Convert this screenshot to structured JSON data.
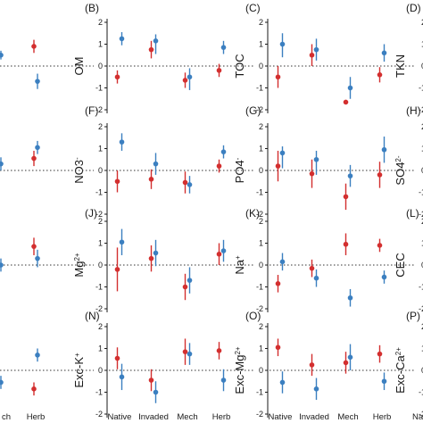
{
  "colors": {
    "Native": "#d32f2f",
    "Invaded": "#3b7fc0"
  },
  "chart_data": {
    "type": "scatter",
    "categories": [
      "Native",
      "Invaded",
      "Mech",
      "Herb"
    ],
    "ylim": [
      -2,
      2
    ],
    "yticks": [
      -2,
      -1,
      0,
      1,
      2
    ],
    "series_colors": [
      "red",
      "blue"
    ],
    "panels": [
      {
        "label": "(B)",
        "ylabel": "OM",
        "row": 0,
        "col": 1,
        "red": [
          {
            "y": -0.5,
            "lo": -0.8,
            "hi": -0.2
          },
          {
            "y": 0.75,
            "lo": 0.35,
            "hi": 1.15
          },
          {
            "y": -0.65,
            "lo": -1.0,
            "hi": -0.3
          },
          {
            "y": -0.2,
            "lo": -0.5,
            "hi": 0.1
          }
        ],
        "blue": [
          {
            "y": 1.25,
            "lo": 0.95,
            "hi": 1.55
          },
          {
            "y": 1.15,
            "lo": 0.55,
            "hi": 1.45
          },
          {
            "y": -0.5,
            "lo": -1.1,
            "hi": -0.1
          },
          {
            "y": 0.85,
            "lo": 0.55,
            "hi": 1.15
          }
        ]
      },
      {
        "label": "(C)",
        "ylabel": "TOC",
        "row": 0,
        "col": 2,
        "red": [
          {
            "y": -0.5,
            "lo": -1.0,
            "hi": 0.0
          },
          {
            "y": 0.5,
            "lo": 0.0,
            "hi": 1.0
          },
          {
            "y": -1.65,
            "lo": -1.7,
            "hi": -1.6
          },
          {
            "y": -0.4,
            "lo": -0.75,
            "hi": -0.05
          }
        ],
        "blue": [
          {
            "y": 1.0,
            "lo": 0.4,
            "hi": 1.5
          },
          {
            "y": 0.75,
            "lo": 0.25,
            "hi": 1.25
          },
          {
            "y": -1.0,
            "lo": -1.5,
            "hi": -0.5
          },
          {
            "y": 0.6,
            "lo": 0.2,
            "hi": 1.0
          }
        ]
      },
      {
        "label": "(D)",
        "ylabel": "TKN",
        "row": 0,
        "col": 3,
        "red": [
          {
            "y": -0.45,
            "lo": -0.85,
            "hi": -0.05
          }
        ],
        "blue": [
          {
            "y": 0.95,
            "lo": 0.55,
            "hi": 1.35
          }
        ]
      },
      {
        "label": "(F)",
        "ylabel": "NO3",
        "supText": "-",
        "row": 1,
        "col": 1,
        "red": [
          {
            "y": -0.5,
            "lo": -1.0,
            "hi": 0.0
          },
          {
            "y": -0.4,
            "lo": -0.85,
            "hi": 0.05
          },
          {
            "y": -0.55,
            "lo": -1.05,
            "hi": -0.05
          },
          {
            "y": 0.2,
            "lo": -0.1,
            "hi": 0.5
          }
        ],
        "blue": [
          {
            "y": 1.3,
            "lo": 0.9,
            "hi": 1.7
          },
          {
            "y": 0.3,
            "lo": -0.2,
            "hi": 0.8
          },
          {
            "y": -0.65,
            "lo": -1.05,
            "hi": -0.25
          },
          {
            "y": 0.85,
            "lo": 0.55,
            "hi": 1.15
          }
        ]
      },
      {
        "label": "(G)",
        "ylabel": "PO4",
        "supText": "-",
        "row": 1,
        "col": 2,
        "red": [
          {
            "y": 0.2,
            "lo": -0.5,
            "hi": 0.9
          },
          {
            "y": -0.15,
            "lo": -0.8,
            "hi": 0.5
          },
          {
            "y": -1.2,
            "lo": -1.8,
            "hi": -0.6
          },
          {
            "y": -0.2,
            "lo": -0.8,
            "hi": 0.4
          }
        ],
        "blue": [
          {
            "y": 0.8,
            "lo": 0.1,
            "hi": 1.1
          },
          {
            "y": 0.5,
            "lo": -0.2,
            "hi": 0.9
          },
          {
            "y": -0.25,
            "lo": -0.75,
            "hi": 0.25
          },
          {
            "y": 0.95,
            "lo": 0.35,
            "hi": 1.55
          }
        ]
      },
      {
        "label": "(H)",
        "ylabel": "SO4",
        "supText": "2-",
        "row": 1,
        "col": 3,
        "red": [
          {
            "y": -1.0,
            "lo": -1.4,
            "hi": -0.6
          }
        ],
        "blue": [
          {
            "y": 0.6,
            "lo": 0.2,
            "hi": 1.0
          }
        ]
      },
      {
        "label": "(J)",
        "ylabel": "Mg",
        "supText": "2+",
        "row": 2,
        "col": 1,
        "red": [
          {
            "y": -0.2,
            "lo": -1.2,
            "hi": 0.8
          },
          {
            "y": 0.3,
            "lo": -0.3,
            "hi": 0.9
          },
          {
            "y": -1.0,
            "lo": -1.6,
            "hi": -0.4
          },
          {
            "y": 0.5,
            "lo": 0.0,
            "hi": 1.0
          }
        ],
        "blue": [
          {
            "y": 1.05,
            "lo": 0.45,
            "hi": 1.65
          },
          {
            "y": 0.55,
            "lo": -0.05,
            "hi": 1.15
          },
          {
            "y": -0.7,
            "lo": -1.3,
            "hi": -0.1
          },
          {
            "y": 0.65,
            "lo": 0.15,
            "hi": 1.15
          }
        ]
      },
      {
        "label": "(K)",
        "ylabel": "Na",
        "supText": "+",
        "row": 2,
        "col": 2,
        "red": [
          {
            "y": -0.85,
            "lo": -1.25,
            "hi": -0.45
          },
          {
            "y": -0.15,
            "lo": -0.55,
            "hi": 0.25
          },
          {
            "y": 0.95,
            "lo": 0.45,
            "hi": 1.45
          },
          {
            "y": 0.9,
            "lo": 0.6,
            "hi": 1.2
          }
        ],
        "blue": [
          {
            "y": 0.15,
            "lo": -0.25,
            "hi": 0.55
          },
          {
            "y": -0.6,
            "lo": -1.0,
            "hi": -0.2
          },
          {
            "y": -1.5,
            "lo": -1.9,
            "hi": -1.1
          },
          {
            "y": -0.55,
            "lo": -0.85,
            "hi": -0.25
          }
        ]
      },
      {
        "label": "(L)",
        "ylabel": "CEC",
        "row": 2,
        "col": 3,
        "red": [
          {
            "y": -0.85,
            "lo": -1.25,
            "hi": -0.45
          }
        ],
        "blue": [
          {
            "y": 1.05,
            "lo": 0.55,
            "hi": 1.55
          }
        ]
      },
      {
        "label": "(N)",
        "ylabel": "Exc-K",
        "supText": "+",
        "row": 3,
        "col": 1,
        "red": [
          {
            "y": 0.55,
            "lo": 0.05,
            "hi": 1.05
          },
          {
            "y": -0.45,
            "lo": -0.95,
            "hi": 0.05
          },
          {
            "y": 0.85,
            "lo": 0.25,
            "hi": 1.45
          },
          {
            "y": 0.9,
            "lo": 0.5,
            "hi": 1.3
          }
        ],
        "blue": [
          {
            "y": -0.3,
            "lo": -0.9,
            "hi": 0.3
          },
          {
            "y": -1.0,
            "lo": -1.5,
            "hi": -0.5
          },
          {
            "y": 0.75,
            "lo": 0.25,
            "hi": 1.25
          },
          {
            "y": -0.45,
            "lo": -0.95,
            "hi": 0.05
          }
        ]
      },
      {
        "label": "(O)",
        "ylabel": "Exc-Mg",
        "supText": "2+",
        "row": 3,
        "col": 2,
        "red": [
          {
            "y": 1.05,
            "lo": 0.65,
            "hi": 1.45
          },
          {
            "y": 0.25,
            "lo": -0.25,
            "hi": 0.75
          },
          {
            "y": 0.35,
            "lo": -0.15,
            "hi": 0.85
          },
          {
            "y": 0.75,
            "lo": 0.35,
            "hi": 1.15
          }
        ],
        "blue": [
          {
            "y": -0.55,
            "lo": -1.05,
            "hi": -0.05
          },
          {
            "y": -0.85,
            "lo": -1.35,
            "hi": -0.35
          },
          {
            "y": 0.6,
            "lo": 0.0,
            "hi": 1.2
          },
          {
            "y": -0.5,
            "lo": -0.9,
            "hi": -0.1
          }
        ]
      },
      {
        "label": "(P)",
        "ylabel": "Exc-Ca",
        "supText": "2+",
        "row": 3,
        "col": 3,
        "red": [
          {
            "y": 0.55,
            "lo": 0.15,
            "hi": 0.95
          }
        ],
        "blue": [
          {
            "y": -0.3,
            "lo": -0.7,
            "hi": 0.1
          }
        ]
      },
      {
        "row": 0,
        "col": 0,
        "red": [
          {
            "y": 0.9,
            "lo": 0.6,
            "hi": 1.2
          }
        ],
        "blue": [
          {
            "y": -0.7,
            "lo": -1.05,
            "hi": -0.35
          }
        ]
      },
      {
        "row": 1,
        "col": 0,
        "red": [
          {
            "y": 0.55,
            "lo": 0.2,
            "hi": 0.9
          }
        ],
        "blue": [
          {
            "y": 1.05,
            "lo": 0.75,
            "hi": 1.35
          }
        ]
      },
      {
        "row": 2,
        "col": 0,
        "red": [
          {
            "y": 0.85,
            "lo": 0.45,
            "hi": 1.25
          }
        ],
        "blue": [
          {
            "y": 0.3,
            "lo": -0.1,
            "hi": 0.7
          }
        ]
      },
      {
        "row": 3,
        "col": 0,
        "red": [
          {
            "y": -0.85,
            "lo": -1.15,
            "hi": -0.55
          }
        ],
        "blue": [
          {
            "y": 0.7,
            "lo": 0.4,
            "hi": 1.0
          }
        ]
      }
    ],
    "partial_left": [
      {
        "row": 0,
        "blue": [
          {
            "y": 0.5,
            "lo": 0.3,
            "hi": 0.7
          }
        ]
      },
      {
        "row": 1,
        "blue": [
          {
            "y": 0.3,
            "lo": 0.0,
            "hi": 0.6
          }
        ]
      },
      {
        "row": 2,
        "blue": [
          {
            "y": 0.0,
            "lo": -0.3,
            "hi": 0.3
          }
        ]
      },
      {
        "row": 3,
        "blue": [
          {
            "y": -0.55,
            "lo": -0.85,
            "hi": -0.25
          }
        ]
      }
    ],
    "partial_x_ticks": [
      "ch",
      "Herb"
    ],
    "right_x_tick": "Na"
  }
}
